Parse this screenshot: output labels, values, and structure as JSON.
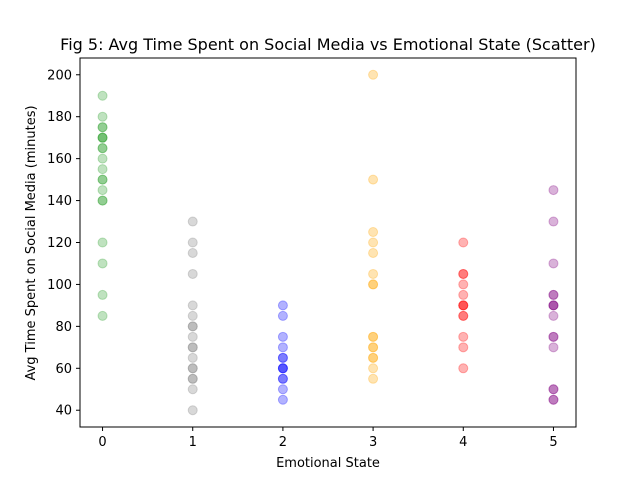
{
  "chart_data": {
    "type": "scatter",
    "title": "Fig 5: Avg Time Spent on Social Media vs Emotional State (Scatter)",
    "xlabel": "Emotional State",
    "ylabel": "Avg Time Spent on Social Media (minutes)",
    "xlim": [
      -0.25,
      5.25
    ],
    "ylim": [
      32,
      208
    ],
    "xticks": [
      0,
      1,
      2,
      3,
      4,
      5
    ],
    "yticks": [
      40,
      60,
      80,
      100,
      120,
      140,
      160,
      180,
      200
    ],
    "grid": false,
    "series": [
      {
        "x": 0,
        "color": "#2ca02c",
        "y": [
          190,
          180,
          175,
          175,
          170,
          170,
          170,
          165,
          165,
          160,
          155,
          150,
          150,
          145,
          140,
          140,
          120,
          110,
          95,
          85
        ]
      },
      {
        "x": 1,
        "color": "#7f7f7f",
        "y": [
          130,
          120,
          115,
          105,
          90,
          85,
          80,
          80,
          75,
          70,
          70,
          65,
          60,
          60,
          55,
          55,
          50,
          40
        ]
      },
      {
        "x": 2,
        "color": "#0000ff",
        "y": [
          90,
          85,
          75,
          70,
          65,
          65,
          60,
          60,
          60,
          55,
          55,
          50,
          45
        ]
      },
      {
        "x": 3,
        "color": "#ffa500",
        "y": [
          200,
          150,
          125,
          120,
          115,
          105,
          100,
          100,
          75,
          75,
          70,
          70,
          65,
          65,
          60,
          55
        ]
      },
      {
        "x": 4,
        "color": "#ff0000",
        "y": [
          120,
          105,
          105,
          100,
          95,
          90,
          90,
          90,
          85,
          85,
          75,
          70,
          60
        ]
      },
      {
        "x": 5,
        "color": "#800080",
        "y": [
          145,
          130,
          110,
          95,
          95,
          90,
          90,
          90,
          85,
          75,
          75,
          70,
          50,
          50,
          45,
          45
        ]
      }
    ]
  }
}
